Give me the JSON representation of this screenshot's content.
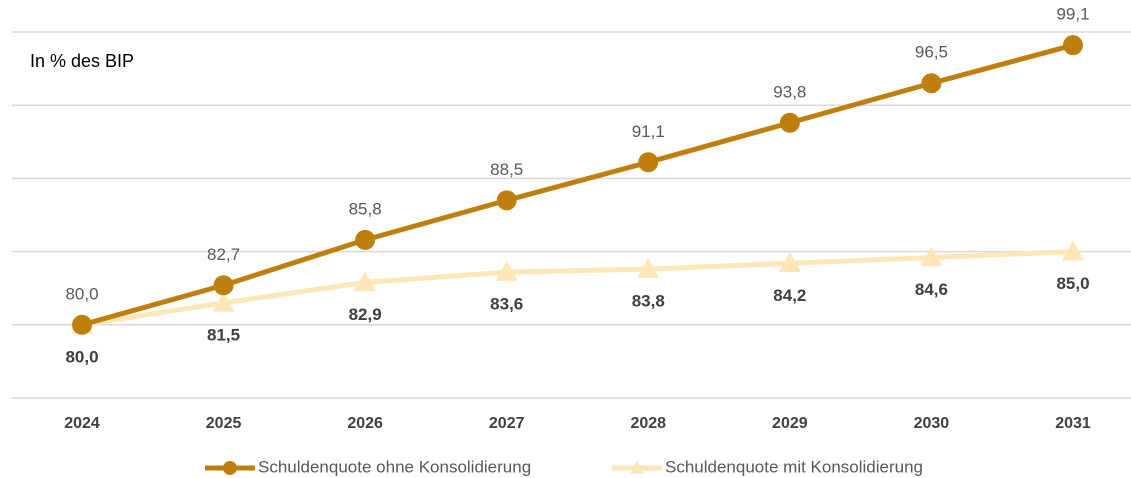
{
  "chart_data": {
    "type": "line",
    "title": "In % des BIP",
    "categories": [
      "2024",
      "2025",
      "2026",
      "2027",
      "2028",
      "2029",
      "2030",
      "2031"
    ],
    "series": [
      {
        "name": "Schuldenquote ohne Konsolidierung",
        "color": "#bf7f0c",
        "marker": "circle",
        "values": [
          80.0,
          82.7,
          85.8,
          88.5,
          91.1,
          93.8,
          96.5,
          99.1
        ],
        "value_labels": [
          "80,0",
          "82,7",
          "85,8",
          "88,5",
          "91,1",
          "93,8",
          "96,5",
          "99,1"
        ]
      },
      {
        "name": "Schuldenquote mit Konsolidierung",
        "color": "#fde6b8",
        "marker": "triangle",
        "values": [
          80.0,
          81.5,
          82.9,
          83.6,
          83.8,
          84.2,
          84.6,
          85.0
        ],
        "value_labels": [
          "80,0",
          "81,5",
          "82,9",
          "83,6",
          "83,8",
          "84,2",
          "84,6",
          "85,0"
        ]
      }
    ],
    "ylim": [
      75,
      100
    ],
    "yticks": [
      75,
      80,
      85,
      90,
      95,
      100
    ],
    "grid": true,
    "legend": "bottom"
  }
}
